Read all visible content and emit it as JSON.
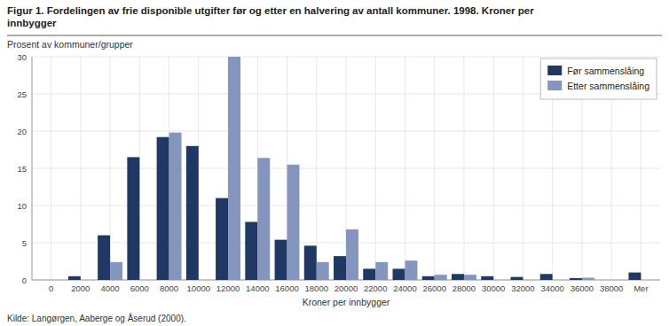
{
  "chart_data": {
    "type": "bar",
    "title": "Figur 1. Fordelingen av frie disponible utgifter før og etter en halvering av antall kommuner. 1998. Kroner per\ninnbygger",
    "ylabel": "Prosent av kommuner/grupper",
    "xlabel": "Kroner per innbygger",
    "source": "Kilde: Langørgen, Aaberge og Åserud (2000).",
    "categories": [
      "0",
      "2000",
      "4000",
      "6000",
      "8000",
      "10000",
      "12000",
      "14000",
      "16000",
      "18000",
      "20000",
      "22000",
      "24000",
      "26000",
      "28000",
      "30000",
      "32000",
      "34000",
      "36000",
      "38000",
      "Mer"
    ],
    "series": [
      {
        "name": "Før sammenslåing",
        "color": "#1f3864",
        "values": [
          0,
          0.5,
          6.0,
          16.5,
          19.2,
          18.0,
          11.0,
          7.8,
          5.4,
          4.6,
          3.2,
          1.5,
          1.5,
          0.5,
          0.8,
          0.5,
          0.4,
          0.8,
          0.25,
          0,
          1.0
        ]
      },
      {
        "name": "Etter sammenslåing",
        "color": "#8496be",
        "values": [
          0,
          0,
          2.4,
          0,
          19.8,
          0,
          30.0,
          16.4,
          15.5,
          2.4,
          6.8,
          2.4,
          2.6,
          0.7,
          0.7,
          0,
          0,
          0,
          0.3,
          0,
          0
        ]
      }
    ],
    "ylim": [
      0,
      30
    ],
    "yticks": [
      0,
      5,
      10,
      15,
      20,
      25,
      30
    ],
    "grid": true,
    "legend": "upper right"
  }
}
